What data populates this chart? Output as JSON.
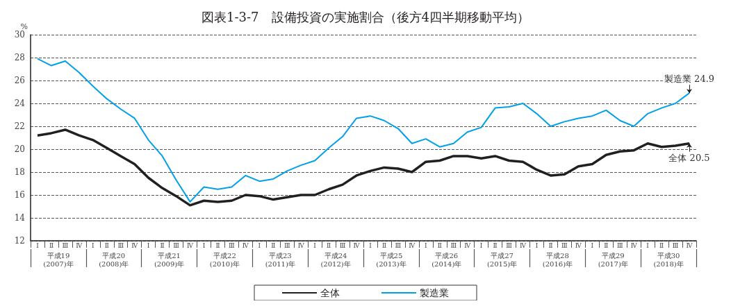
{
  "chart_data": {
    "type": "line",
    "title": "図表1-3-7　設備投資の実施割合（後方4四半期移動平均）",
    "ylabel": "%",
    "categories": [
      "Ⅰ",
      "Ⅱ",
      "Ⅲ",
      "Ⅳ",
      "Ⅰ",
      "Ⅱ",
      "Ⅲ",
      "Ⅳ",
      "Ⅰ",
      "Ⅱ",
      "Ⅲ",
      "Ⅳ",
      "Ⅰ",
      "Ⅱ",
      "Ⅲ",
      "Ⅳ",
      "Ⅰ",
      "Ⅱ",
      "Ⅲ",
      "Ⅳ",
      "Ⅰ",
      "Ⅱ",
      "Ⅲ",
      "Ⅳ",
      "Ⅰ",
      "Ⅱ",
      "Ⅲ",
      "Ⅳ",
      "Ⅰ",
      "Ⅱ",
      "Ⅲ",
      "Ⅳ",
      "Ⅰ",
      "Ⅱ",
      "Ⅲ",
      "Ⅳ",
      "Ⅰ",
      "Ⅱ",
      "Ⅲ",
      "Ⅳ",
      "Ⅰ",
      "Ⅱ",
      "Ⅲ",
      "Ⅳ",
      "Ⅰ",
      "Ⅱ",
      "Ⅲ",
      "Ⅳ"
    ],
    "series": [
      {
        "name": "全体",
        "color": "#231f20",
        "values": [
          21.2,
          21.4,
          21.7,
          21.2,
          20.8,
          20.1,
          19.4,
          18.7,
          17.5,
          16.6,
          15.9,
          15.1,
          15.5,
          15.4,
          15.5,
          16.0,
          15.9,
          15.6,
          15.8,
          16.0,
          16.0,
          16.5,
          16.9,
          17.7,
          18.1,
          18.4,
          18.3,
          18.0,
          18.9,
          19.0,
          19.4,
          19.4,
          19.2,
          19.4,
          19.0,
          18.9,
          18.2,
          17.7,
          17.8,
          18.5,
          18.7,
          19.5,
          19.8,
          19.9,
          20.5,
          20.2,
          20.3,
          20.5
        ]
      },
      {
        "name": "製造業",
        "color": "#00a0e9",
        "values": [
          27.9,
          27.3,
          27.7,
          26.7,
          25.5,
          24.4,
          23.5,
          22.7,
          20.8,
          19.4,
          17.3,
          15.4,
          16.7,
          16.5,
          16.7,
          17.7,
          17.2,
          17.4,
          18.1,
          18.6,
          19.0,
          20.1,
          21.1,
          22.7,
          22.9,
          22.5,
          21.8,
          20.5,
          20.9,
          20.2,
          20.5,
          21.5,
          21.9,
          23.6,
          23.7,
          24.0,
          23.1,
          22.0,
          22.4,
          22.7,
          22.9,
          23.4,
          22.5,
          22.0,
          23.1,
          23.6,
          24.0,
          24.9
        ]
      }
    ],
    "annotations": [
      "平成19\n(2007)年",
      "平成20\n(2008)年",
      "平成21\n(2009)年",
      "平成22\n(2010)年",
      "平成23\n(2011)年",
      "平成24\n(2012)年",
      "平成25\n(2013)年",
      "平成26\n(2014)年",
      "平成27\n(2015)年",
      "平成28\n(2016)年",
      "平成29\n(2017)年",
      "平成30\n(2018)年",
      {
        "text": "製造業 24.9",
        "y": 24.9
      },
      {
        "text": "全体 20.5",
        "y": 20.5
      }
    ],
    "ylim": [
      12,
      30
    ],
    "yticks": [
      12,
      14,
      16,
      18,
      20,
      22,
      24,
      26,
      28,
      30
    ],
    "grid": "y",
    "legend": "bottom",
    "marker": "none",
    "line_style": "solid"
  }
}
